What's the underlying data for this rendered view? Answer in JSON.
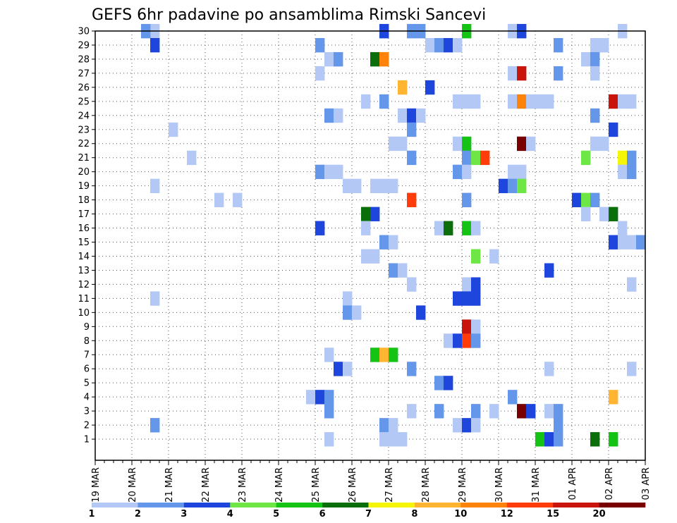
{
  "chart_data": {
    "type": "heatmap",
    "title": "GEFS 6hr padavine po ansamblima Rimski Sancevi",
    "xlabel": "",
    "ylabel": "",
    "x_axis": "6-hourly time steps, 19 MAR 00Z to 03 APR 00Z",
    "x_tick_labels": [
      "19 MAR",
      "20 MAR",
      "21 MAR",
      "22 MAR",
      "23 MAR",
      "24 MAR",
      "25 MAR",
      "26 MAR",
      "27 MAR",
      "28 MAR",
      "29 MAR",
      "30 MAR",
      "31 MAR",
      "01 APR",
      "02 APR",
      "03 APR"
    ],
    "y_tick_labels": [
      "1",
      "2",
      "3",
      "4",
      "5",
      "6",
      "7",
      "8",
      "9",
      "10",
      "11",
      "12",
      "13",
      "14",
      "15",
      "16",
      "17",
      "18",
      "19",
      "20",
      "21",
      "22",
      "23",
      "24",
      "25",
      "26",
      "27",
      "28",
      "29",
      "30"
    ],
    "y_range": [
      0,
      30
    ],
    "grid": true,
    "colorbar": {
      "labels": [
        "1",
        "2",
        "3",
        "4",
        "5",
        "6",
        "7",
        "8",
        "10",
        "12",
        "15",
        "20"
      ],
      "colors": [
        "#b4c8f5",
        "#6496ea",
        "#1e46dc",
        "#6ee646",
        "#14c314",
        "#0a6e0a",
        "#f5f50a",
        "#ffb432",
        "#ff820a",
        "#ff3c0a",
        "#c8140a",
        "#780000"
      ]
    },
    "units": "mm",
    "note_on_values": "cells list [time_step_index, member, class_index]; class_index indexes colorbar.colors",
    "cells": [
      [
        6,
        30,
        0
      ],
      [
        5,
        30,
        1
      ],
      [
        31,
        30,
        2
      ],
      [
        34,
        30,
        1
      ],
      [
        35,
        30,
        1
      ],
      [
        40,
        30,
        4
      ],
      [
        45,
        30,
        0
      ],
      [
        46,
        30,
        2
      ],
      [
        57,
        30,
        0
      ],
      [
        6,
        29,
        2
      ],
      [
        24,
        29,
        1
      ],
      [
        36,
        29,
        0
      ],
      [
        37,
        29,
        1
      ],
      [
        38,
        29,
        2
      ],
      [
        39,
        29,
        0
      ],
      [
        50,
        29,
        1
      ],
      [
        54,
        29,
        0
      ],
      [
        55,
        29,
        0
      ],
      [
        25,
        28,
        0
      ],
      [
        26,
        28,
        1
      ],
      [
        30,
        28,
        5
      ],
      [
        31,
        28,
        8
      ],
      [
        53,
        28,
        0
      ],
      [
        54,
        28,
        1
      ],
      [
        24,
        27,
        0
      ],
      [
        45,
        27,
        0
      ],
      [
        46,
        27,
        10
      ],
      [
        50,
        27,
        1
      ],
      [
        54,
        27,
        0
      ],
      [
        33,
        26,
        7
      ],
      [
        36,
        26,
        2
      ],
      [
        29,
        25,
        0
      ],
      [
        31,
        25,
        1
      ],
      [
        39,
        25,
        0
      ],
      [
        40,
        25,
        0
      ],
      [
        41,
        25,
        0
      ],
      [
        45,
        25,
        0
      ],
      [
        46,
        25,
        8
      ],
      [
        47,
        25,
        0
      ],
      [
        48,
        25,
        0
      ],
      [
        49,
        25,
        0
      ],
      [
        56,
        25,
        10
      ],
      [
        57,
        25,
        0
      ],
      [
        58,
        25,
        0
      ],
      [
        25,
        24,
        1
      ],
      [
        26,
        24,
        0
      ],
      [
        33,
        24,
        0
      ],
      [
        34,
        24,
        2
      ],
      [
        35,
        24,
        0
      ],
      [
        54,
        24,
        1
      ],
      [
        8,
        23,
        0
      ],
      [
        34,
        23,
        1
      ],
      [
        56,
        23,
        2
      ],
      [
        32,
        22,
        0
      ],
      [
        33,
        22,
        0
      ],
      [
        39,
        22,
        0
      ],
      [
        40,
        22,
        4
      ],
      [
        46,
        22,
        11
      ],
      [
        47,
        22,
        0
      ],
      [
        54,
        22,
        0
      ],
      [
        55,
        22,
        0
      ],
      [
        10,
        21,
        0
      ],
      [
        34,
        21,
        1
      ],
      [
        40,
        21,
        1
      ],
      [
        41,
        21,
        3
      ],
      [
        42,
        21,
        9
      ],
      [
        53,
        21,
        3
      ],
      [
        57,
        21,
        6
      ],
      [
        58,
        21,
        1
      ],
      [
        24,
        20,
        1
      ],
      [
        25,
        20,
        0
      ],
      [
        26,
        20,
        0
      ],
      [
        39,
        20,
        1
      ],
      [
        40,
        20,
        0
      ],
      [
        45,
        20,
        0
      ],
      [
        46,
        20,
        0
      ],
      [
        57,
        20,
        0
      ],
      [
        58,
        20,
        1
      ],
      [
        6,
        19,
        0
      ],
      [
        27,
        19,
        0
      ],
      [
        28,
        19,
        0
      ],
      [
        30,
        19,
        0
      ],
      [
        31,
        19,
        0
      ],
      [
        32,
        19,
        0
      ],
      [
        44,
        19,
        2
      ],
      [
        45,
        19,
        1
      ],
      [
        46,
        19,
        3
      ],
      [
        13,
        18,
        0
      ],
      [
        15,
        18,
        0
      ],
      [
        34,
        18,
        9
      ],
      [
        40,
        18,
        1
      ],
      [
        52,
        18,
        2
      ],
      [
        53,
        18,
        3
      ],
      [
        54,
        18,
        1
      ],
      [
        29,
        17,
        5
      ],
      [
        30,
        17,
        2
      ],
      [
        53,
        17,
        0
      ],
      [
        55,
        17,
        0
      ],
      [
        56,
        17,
        5
      ],
      [
        24,
        16,
        2
      ],
      [
        29,
        16,
        0
      ],
      [
        37,
        16,
        0
      ],
      [
        38,
        16,
        5
      ],
      [
        40,
        16,
        4
      ],
      [
        41,
        16,
        0
      ],
      [
        57,
        16,
        0
      ],
      [
        31,
        15,
        1
      ],
      [
        32,
        15,
        0
      ],
      [
        56,
        15,
        2
      ],
      [
        57,
        15,
        0
      ],
      [
        58,
        15,
        0
      ],
      [
        59,
        15,
        1
      ],
      [
        29,
        14,
        0
      ],
      [
        30,
        14,
        0
      ],
      [
        41,
        14,
        3
      ],
      [
        43,
        14,
        0
      ],
      [
        32,
        13,
        1
      ],
      [
        33,
        13,
        0
      ],
      [
        49,
        13,
        2
      ],
      [
        34,
        12,
        0
      ],
      [
        40,
        12,
        0
      ],
      [
        41,
        12,
        2
      ],
      [
        58,
        12,
        0
      ],
      [
        6,
        11,
        0
      ],
      [
        27,
        11,
        0
      ],
      [
        39,
        11,
        2
      ],
      [
        40,
        11,
        2
      ],
      [
        41,
        11,
        2
      ],
      [
        27,
        10,
        1
      ],
      [
        28,
        10,
        0
      ],
      [
        35,
        10,
        2
      ],
      [
        40,
        9,
        10
      ],
      [
        41,
        9,
        0
      ],
      [
        38,
        8,
        0
      ],
      [
        39,
        8,
        2
      ],
      [
        40,
        8,
        9
      ],
      [
        41,
        8,
        1
      ],
      [
        25,
        7,
        0
      ],
      [
        30,
        7,
        4
      ],
      [
        31,
        7,
        7
      ],
      [
        32,
        7,
        4
      ],
      [
        26,
        6,
        2
      ],
      [
        27,
        6,
        0
      ],
      [
        34,
        6,
        1
      ],
      [
        49,
        6,
        0
      ],
      [
        58,
        6,
        0
      ],
      [
        37,
        5,
        1
      ],
      [
        38,
        5,
        2
      ],
      [
        23,
        4,
        0
      ],
      [
        24,
        4,
        2
      ],
      [
        25,
        4,
        1
      ],
      [
        45,
        4,
        1
      ],
      [
        56,
        4,
        7
      ],
      [
        25,
        3,
        1
      ],
      [
        34,
        3,
        0
      ],
      [
        37,
        3,
        1
      ],
      [
        41,
        3,
        1
      ],
      [
        43,
        3,
        0
      ],
      [
        46,
        3,
        11
      ],
      [
        47,
        3,
        2
      ],
      [
        49,
        3,
        0
      ],
      [
        50,
        3,
        1
      ],
      [
        6,
        2,
        1
      ],
      [
        31,
        2,
        1
      ],
      [
        32,
        2,
        0
      ],
      [
        39,
        2,
        0
      ],
      [
        40,
        2,
        2
      ],
      [
        41,
        2,
        0
      ],
      [
        50,
        2,
        1
      ],
      [
        25,
        1,
        0
      ],
      [
        31,
        1,
        0
      ],
      [
        32,
        1,
        0
      ],
      [
        33,
        1,
        0
      ],
      [
        48,
        1,
        4
      ],
      [
        49,
        1,
        2
      ],
      [
        50,
        1,
        1
      ],
      [
        54,
        1,
        5
      ],
      [
        56,
        1,
        4
      ]
    ]
  }
}
